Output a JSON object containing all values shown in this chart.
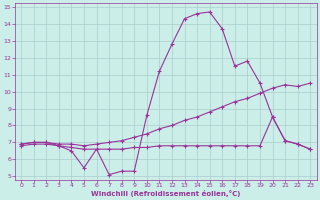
{
  "xlabel": "Windchill (Refroidissement éolien,°C)",
  "xlim": [
    -0.5,
    23.5
  ],
  "ylim": [
    4.8,
    15.2
  ],
  "yticks": [
    5,
    6,
    7,
    8,
    9,
    10,
    11,
    12,
    13,
    14,
    15
  ],
  "xticks": [
    0,
    1,
    2,
    3,
    4,
    5,
    6,
    7,
    8,
    9,
    10,
    11,
    12,
    13,
    14,
    15,
    16,
    17,
    18,
    19,
    20,
    21,
    22,
    23
  ],
  "bg_color": "#cceee8",
  "line_color": "#993399",
  "grid_color": "#aacccc",
  "series1_x": [
    0,
    1,
    2,
    3,
    4,
    5,
    6,
    7,
    8,
    9,
    10,
    11,
    12,
    13,
    14,
    15,
    16,
    17,
    18,
    19,
    20,
    21,
    22,
    23
  ],
  "series1_y": [
    6.9,
    7.0,
    7.0,
    6.8,
    6.5,
    5.5,
    6.6,
    5.1,
    5.3,
    5.3,
    8.6,
    11.2,
    12.8,
    14.3,
    14.6,
    14.7,
    13.7,
    11.5,
    11.8,
    10.5,
    8.5,
    7.1,
    6.9,
    6.6
  ],
  "series2_x": [
    0,
    1,
    2,
    3,
    4,
    5,
    6,
    7,
    8,
    9,
    10,
    11,
    12,
    13,
    14,
    15,
    16,
    17,
    18,
    19,
    20,
    21,
    22,
    23
  ],
  "series2_y": [
    6.9,
    7.0,
    7.0,
    6.9,
    6.9,
    6.8,
    6.9,
    7.0,
    7.1,
    7.3,
    7.5,
    7.8,
    8.0,
    8.3,
    8.5,
    8.8,
    9.1,
    9.4,
    9.6,
    9.9,
    10.2,
    10.4,
    10.3,
    10.5
  ],
  "series3_x": [
    0,
    1,
    2,
    3,
    4,
    5,
    6,
    7,
    8,
    9,
    10,
    11,
    12,
    13,
    14,
    15,
    16,
    17,
    18,
    19,
    20,
    21,
    22,
    23
  ],
  "series3_y": [
    6.8,
    6.9,
    6.9,
    6.8,
    6.7,
    6.6,
    6.6,
    6.6,
    6.6,
    6.7,
    6.7,
    6.8,
    6.8,
    6.8,
    6.8,
    6.8,
    6.8,
    6.8,
    6.8,
    6.8,
    8.5,
    7.1,
    6.9,
    6.6
  ]
}
